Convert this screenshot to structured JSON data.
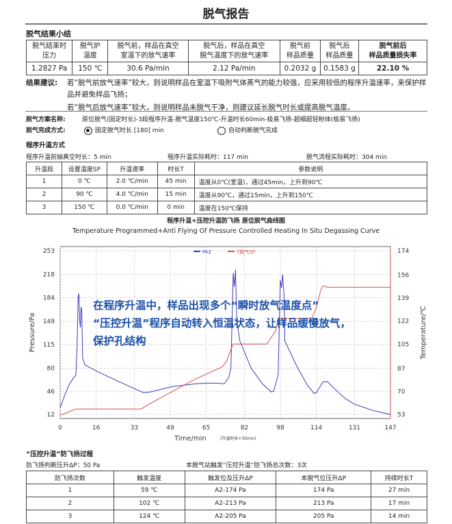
{
  "title": "脱气报告",
  "summary": {
    "heading": "脱气结果小结",
    "headers": [
      "脱气结束时\n压力",
      "脱气炉\n温度",
      "脱气前，样品在真空\n室温下的放气速率",
      "脱气后，样品在真空\n脱气温度下的放气速率",
      "脱气前\n样品质量",
      "脱气后\n样品质量",
      "脱气前后\n样品质量损失率"
    ],
    "values": [
      "1.2827 Pa",
      "150 ℃",
      "30.6 Pa/min",
      "2.12 Pa/min",
      "0.2032 g",
      "0.1583 g",
      "22.10 %"
    ]
  },
  "advice": {
    "label": "结果建议:",
    "lines": [
      "若“脱气前放气速率”较大，则说明样品在室温下吸附气体蒸气的能力较强，应采用较低的程序升温速率，来保护样品并避免样品飞扬；",
      "若“脱气后放气速率”较大，则说明样品未脱气干净，则建议延长脱气时长或提高脱气温度。"
    ]
  },
  "scheme": {
    "label": "脱气方案名称:",
    "value": "原位脱气(固定时长)-3段程序升温-脱气温度150℃-升温时长60min-极易飞扬-超细超轻粉体(极易飞扬)"
  },
  "completion": {
    "label": "脱气完成方式:",
    "option1": "固定脱气时长 [180] min",
    "option1_selected": true,
    "option2": "自动判断脱气完成",
    "option2_selected": false
  },
  "ramp": {
    "heading": "程序升温方式",
    "pre_vacuum": "程序升温前抽真空时长：5 min",
    "ramp_time": "程序升温实际耗时：117 min",
    "total_time": "脱气流程实际耗时：304 min",
    "headers": [
      "升温段",
      "设置温度SP",
      "升温速率",
      "时长T",
      "参数说明"
    ],
    "rows": [
      [
        "1",
        "0 ℃",
        "2.0 ℃/min",
        "45 min",
        "温度从0℃(室温)，通过45min，上升到90℃"
      ],
      [
        "2",
        "90 ℃",
        "4.0 ℃/min",
        "15 min",
        "温度从90℃，通过15min，上升到150℃"
      ],
      [
        "3",
        "150 ℃",
        "0.0 ℃/min",
        "0 min",
        "温度在150℃保持"
      ]
    ]
  },
  "chart_data": {
    "type": "line",
    "title": "程序升温+压控升温防飞扬 原位脱气曲线图",
    "subtitle": "Temperature Programmed+Anti Flying Of Pressure Controlled Heating  In Situ Degassing Curve",
    "xlabel": "Time/min",
    "xlabel_note": "(升温时长+30min)",
    "ylabel": "Pressure/Pa",
    "y2label": "Temperature/℃",
    "xticks": [
      0,
      16,
      33,
      49,
      65,
      82,
      98,
      114,
      131,
      147
    ],
    "yticks": [
      12,
      46,
      80,
      115,
      149,
      184,
      218,
      253
    ],
    "y2ticks": [
      53,
      70,
      87,
      105,
      122,
      139,
      156,
      174
    ],
    "xlim": [
      0,
      147
    ],
    "ylim": [
      12,
      253
    ],
    "y2lim": [
      53,
      174
    ],
    "grid": true,
    "legend": "top-center",
    "series": [
      {
        "name": "PA2",
        "axis": "left",
        "color": "#3a3ab8",
        "points": [
          [
            0,
            22
          ],
          [
            2,
            40
          ],
          [
            4,
            56
          ],
          [
            6,
            66
          ],
          [
            7,
            70
          ],
          [
            7.5,
            110
          ],
          [
            8,
            185
          ],
          [
            8.3,
            190
          ],
          [
            8.7,
            150
          ],
          [
            9,
            140
          ],
          [
            9.3,
            170
          ],
          [
            9.6,
            165
          ],
          [
            10,
            95
          ],
          [
            11,
            85
          ],
          [
            16,
            76
          ],
          [
            25,
            62
          ],
          [
            33,
            50
          ],
          [
            37,
            44
          ],
          [
            40,
            45
          ],
          [
            50,
            53
          ],
          [
            60,
            57
          ],
          [
            65,
            58
          ],
          [
            70,
            58
          ],
          [
            73,
            57
          ],
          [
            75,
            66
          ],
          [
            76,
            80
          ],
          [
            76.5,
            150
          ],
          [
            77,
            220
          ],
          [
            77.5,
            200
          ],
          [
            78,
            225
          ],
          [
            78.6,
            150
          ],
          [
            80,
            120
          ],
          [
            85,
            80
          ],
          [
            90,
            57
          ],
          [
            94,
            45
          ],
          [
            95,
            46
          ],
          [
            97,
            70
          ],
          [
            97.5,
            140
          ],
          [
            98,
            210
          ],
          [
            98.5,
            198
          ],
          [
            99,
            218
          ],
          [
            99.6,
            190
          ],
          [
            100,
            120
          ],
          [
            105,
            85
          ],
          [
            110,
            55
          ],
          [
            113,
            43
          ],
          [
            114,
            44
          ],
          [
            117,
            60
          ],
          [
            119,
            60
          ],
          [
            122,
            50
          ],
          [
            127,
            35
          ],
          [
            131,
            27
          ],
          [
            140,
            17
          ],
          [
            147,
            12
          ]
        ]
      },
      {
        "name": "T脱气SP",
        "axis": "right",
        "color": "#d05050",
        "points": [
          [
            0,
            53
          ],
          [
            1,
            53
          ],
          [
            7,
            57
          ],
          [
            36,
            57
          ],
          [
            40,
            61
          ],
          [
            50,
            70
          ],
          [
            60,
            79
          ],
          [
            72,
            88
          ],
          [
            74,
            92
          ],
          [
            76,
            101
          ],
          [
            77,
            105
          ],
          [
            80,
            105
          ],
          [
            92,
            105
          ],
          [
            96,
            115
          ],
          [
            97,
            124
          ],
          [
            112,
            124
          ],
          [
            114,
            132
          ],
          [
            116,
            145
          ],
          [
            117,
            148
          ],
          [
            119,
            147
          ],
          [
            147,
            147
          ]
        ]
      }
    ]
  },
  "overlay_text": [
    "在程序升温中，样品出现多个“瞬时放气温度点”",
    "“压控升温”程序自动转入恒温状态，让样品缓慢放气，",
    "保护孔结构"
  ],
  "antifly": {
    "heading": "“压控升温”防飞扬过程",
    "threshold": "防飞扬判断压升ΔP：50 Pa",
    "count": "本脱气站触发“压控升温”防飞扬总次数：3次",
    "headers": [
      "防飞扬次数",
      "触发温度",
      "触发位及压升ΔP",
      "本脱气位压升ΔP",
      "持续时长T"
    ],
    "rows": [
      [
        "1",
        "59 ℃",
        "A2-174 Pa",
        "174 Pa",
        "27 min"
      ],
      [
        "2",
        "102 ℃",
        "A2-213 Pa",
        "213 Pa",
        "17 min"
      ],
      [
        "3",
        "124 ℃",
        "A2-205 Pa",
        "205 Pa",
        "14 min"
      ]
    ]
  }
}
